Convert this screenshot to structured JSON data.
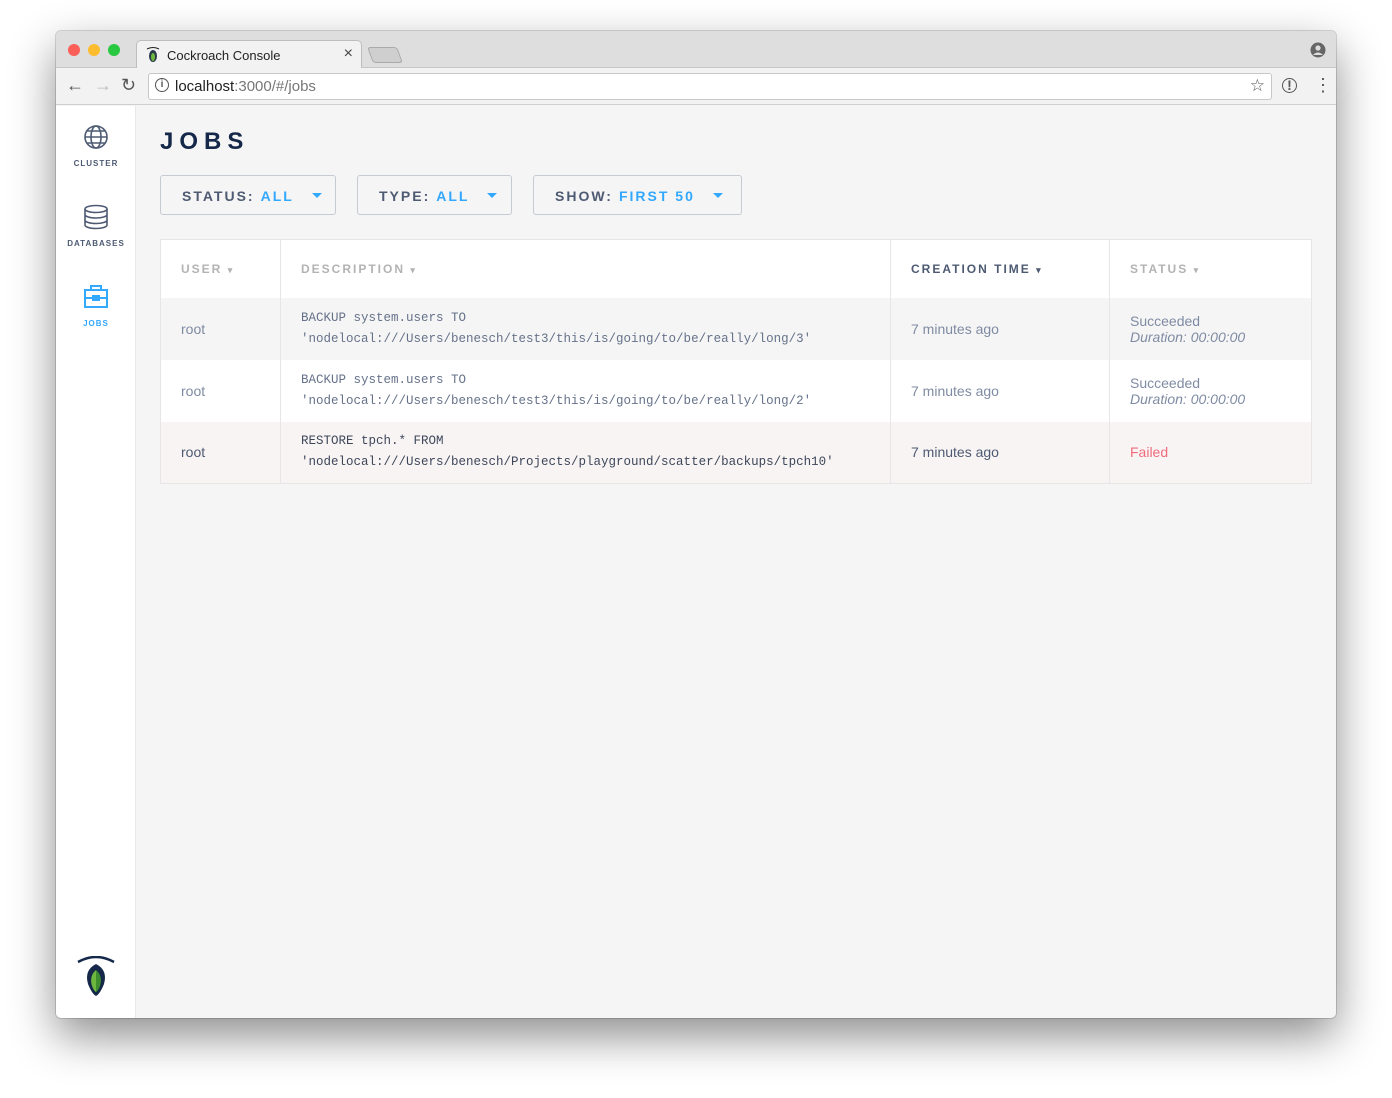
{
  "browser": {
    "tab_title": "Cockroach Console",
    "url_host": "localhost",
    "url_rest": ":3000/#/jobs"
  },
  "sidebar": {
    "items": [
      {
        "label": "CLUSTER",
        "icon": "globe-icon"
      },
      {
        "label": "DATABASES",
        "icon": "database-icon"
      },
      {
        "label": "JOBS",
        "icon": "briefcase-icon",
        "active": true
      }
    ]
  },
  "page": {
    "title": "JOBS"
  },
  "filters": [
    {
      "label": "STATUS:",
      "value": "ALL"
    },
    {
      "label": "TYPE:",
      "value": "ALL"
    },
    {
      "label": "SHOW:",
      "value": "FIRST 50"
    }
  ],
  "table": {
    "headers": [
      "USER",
      "DESCRIPTION",
      "CREATION TIME",
      "STATUS"
    ],
    "sort_arrow": "▾",
    "rows": [
      {
        "user": "root",
        "desc1": "BACKUP system.users TO",
        "desc2": "'nodelocal:///Users/benesch/test3/this/is/going/to/be/really/long/3'",
        "time": "7 minutes ago",
        "status": "Succeeded",
        "duration": "Duration: 00:00:00"
      },
      {
        "user": "root",
        "desc1": "BACKUP system.users TO",
        "desc2": "'nodelocal:///Users/benesch/test3/this/is/going/to/be/really/long/2'",
        "time": "7 minutes ago",
        "status": "Succeeded",
        "duration": "Duration: 00:00:00"
      },
      {
        "user": "root",
        "desc1": "RESTORE tpch.* FROM",
        "desc2": "'nodelocal:///Users/benesch/Projects/playground/scatter/backups/tpch10'",
        "time": "7 minutes ago",
        "status": "Failed"
      }
    ]
  },
  "colors": {
    "accent": "#33a8ff",
    "failed": "#f06c7d",
    "title": "#152849"
  }
}
